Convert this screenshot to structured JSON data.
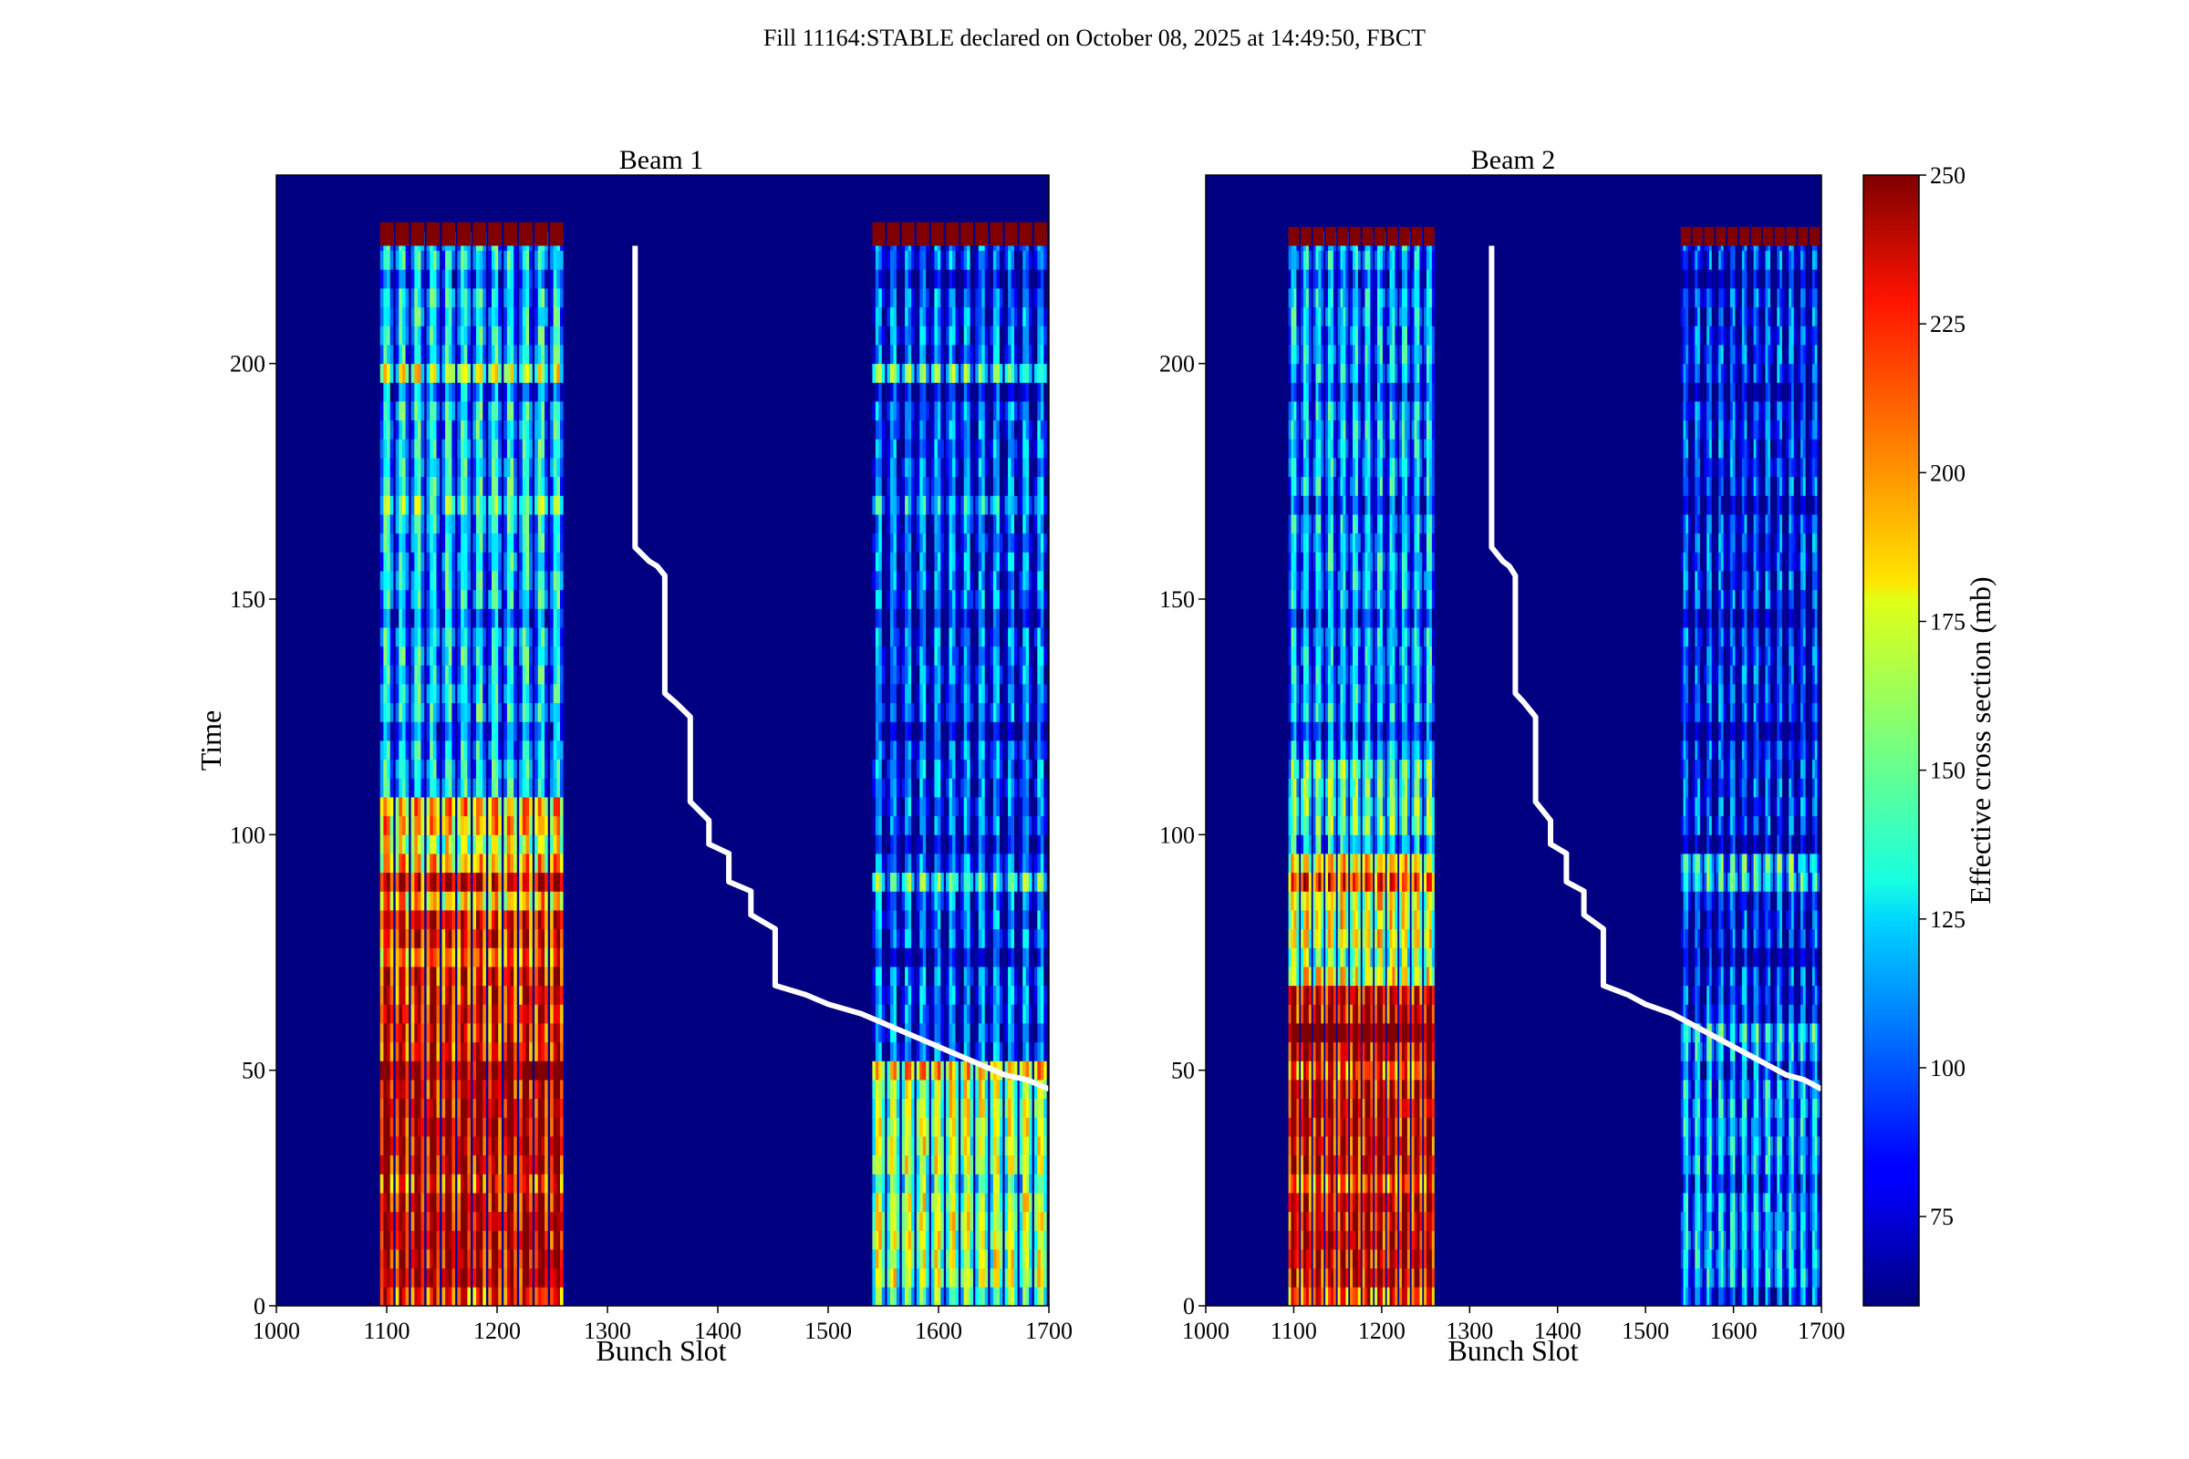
{
  "chart_data": {
    "type": "heatmap",
    "suptitle": "Fill 11164:STABLE declared on October 08, 2025 at 14:49:50, FBCT",
    "xlabel": "Bunch Slot",
    "ylabel": "Time",
    "xlim": [
      1000,
      1700
    ],
    "ylim": [
      0,
      240
    ],
    "x_ticks": [
      1000,
      1100,
      1200,
      1300,
      1400,
      1500,
      1600,
      1700
    ],
    "y_ticks": [
      0,
      50,
      100,
      150,
      200
    ],
    "colorbar": {
      "label": "Effective cross section (mb)",
      "range": [
        60,
        250
      ],
      "ticks": [
        75,
        100,
        125,
        150,
        175,
        200,
        225,
        250
      ],
      "colormap": "jet"
    },
    "panels": [
      {
        "title": "Beam 1",
        "bunch_groups": [
          {
            "start": 1094,
            "end": 1262,
            "trains": 12
          },
          {
            "start": 1540,
            "end": 1700,
            "trains": 12
          }
        ],
        "cap_row": {
          "time_start": 225,
          "time_end": 230,
          "value": 250
        },
        "bands": [
          {
            "group": 0,
            "t0": 0,
            "t1": 50,
            "base": 240
          },
          {
            "group": 0,
            "t0": 50,
            "t1": 83,
            "base": 228
          },
          {
            "group": 0,
            "t0": 83,
            "t1": 108,
            "base": 190
          },
          {
            "group": 0,
            "t0": 108,
            "t1": 225,
            "base": 125
          },
          {
            "group": 1,
            "t0": 0,
            "t1": 50,
            "base": 165
          },
          {
            "group": 1,
            "t0": 50,
            "t1": 225,
            "base": 100
          }
        ],
        "stripe_rows": [
          195,
          167,
          88,
          48
        ],
        "fill_line": [
          [
            1325,
            225
          ],
          [
            1325,
            161
          ],
          [
            1338,
            158
          ],
          [
            1345,
            157
          ],
          [
            1352,
            155
          ],
          [
            1352,
            130
          ],
          [
            1362,
            128
          ],
          [
            1375,
            125
          ],
          [
            1375,
            107
          ],
          [
            1392,
            103
          ],
          [
            1392,
            98
          ],
          [
            1410,
            96
          ],
          [
            1410,
            90
          ],
          [
            1430,
            88
          ],
          [
            1430,
            83
          ],
          [
            1452,
            80
          ],
          [
            1452,
            68
          ],
          [
            1480,
            66
          ],
          [
            1500,
            64
          ],
          [
            1530,
            62
          ],
          [
            1560,
            59
          ],
          [
            1590,
            56
          ],
          [
            1620,
            53
          ],
          [
            1640,
            51
          ],
          [
            1660,
            49
          ],
          [
            1680,
            48
          ],
          [
            1700,
            46
          ]
        ]
      },
      {
        "title": "Beam 2",
        "bunch_groups": [
          {
            "start": 1094,
            "end": 1262,
            "trains": 12
          },
          {
            "start": 1540,
            "end": 1700,
            "trains": 12
          }
        ],
        "cap_row": {
          "time_start": 225,
          "time_end": 229,
          "value": 250
        },
        "bands": [
          {
            "group": 0,
            "t0": 0,
            "t1": 67,
            "base": 235
          },
          {
            "group": 0,
            "t0": 67,
            "t1": 92,
            "base": 175
          },
          {
            "group": 0,
            "t0": 92,
            "t1": 113,
            "base": 145
          },
          {
            "group": 0,
            "t0": 113,
            "t1": 225,
            "base": 118
          },
          {
            "group": 1,
            "t0": 0,
            "t1": 55,
            "base": 118
          },
          {
            "group": 1,
            "t0": 55,
            "t1": 225,
            "base": 92
          }
        ],
        "stripe_rows": [
          90,
          55
        ],
        "fill_line": [
          [
            1325,
            225
          ],
          [
            1325,
            161
          ],
          [
            1338,
            158
          ],
          [
            1345,
            157
          ],
          [
            1352,
            155
          ],
          [
            1352,
            130
          ],
          [
            1362,
            128
          ],
          [
            1375,
            125
          ],
          [
            1375,
            107
          ],
          [
            1392,
            103
          ],
          [
            1392,
            98
          ],
          [
            1410,
            96
          ],
          [
            1410,
            90
          ],
          [
            1430,
            88
          ],
          [
            1430,
            83
          ],
          [
            1452,
            80
          ],
          [
            1452,
            68
          ],
          [
            1480,
            66
          ],
          [
            1500,
            64
          ],
          [
            1530,
            62
          ],
          [
            1560,
            59
          ],
          [
            1590,
            56
          ],
          [
            1620,
            53
          ],
          [
            1640,
            51
          ],
          [
            1660,
            49
          ],
          [
            1680,
            48
          ],
          [
            1700,
            46
          ]
        ]
      }
    ]
  }
}
